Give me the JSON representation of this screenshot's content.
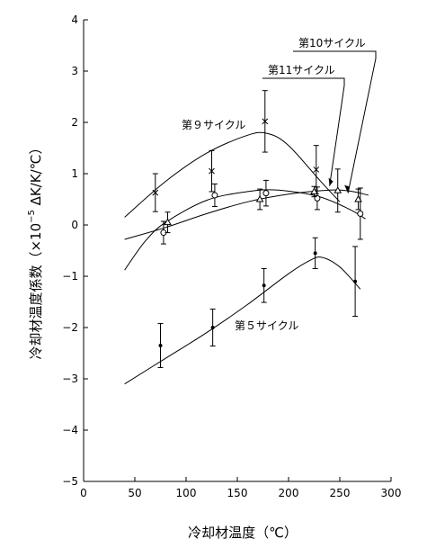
{
  "chart_data": {
    "type": "scatter",
    "xlabel": "冷却材温度（℃）",
    "ylabel": {
      "prefix": "冷却材温度係数（×10",
      "exponent": "−5",
      "suffix": " ΔK/K/℃）"
    },
    "xlim": [
      0,
      300
    ],
    "ylim": [
      -5,
      4
    ],
    "x_ticks": [
      0,
      50,
      100,
      150,
      200,
      250,
      300
    ],
    "y_ticks": [
      -5,
      -4,
      -3,
      -2,
      -1,
      0,
      1,
      2,
      3,
      4
    ],
    "grid": false,
    "series": [
      {
        "name": "第９サイクル",
        "marker": "x",
        "points": [
          {
            "x": 70,
            "y": 0.63,
            "err": 0.37
          },
          {
            "x": 125,
            "y": 1.05,
            "err": 0.4
          },
          {
            "x": 177,
            "y": 2.02,
            "err": 0.6
          },
          {
            "x": 227,
            "y": 1.08,
            "err": 0.47
          }
        ],
        "curve": [
          [
            40,
            0.15
          ],
          [
            80,
            0.85
          ],
          [
            120,
            1.4
          ],
          [
            160,
            1.75
          ],
          [
            180,
            1.78
          ],
          [
            200,
            1.55
          ],
          [
            230,
            0.88
          ],
          [
            250,
            0.45
          ]
        ]
      },
      {
        "name": "第11サイクル",
        "marker": "o",
        "points": [
          {
            "x": 78,
            "y": -0.15,
            "err": 0.22
          },
          {
            "x": 128,
            "y": 0.58,
            "err": 0.22
          },
          {
            "x": 178,
            "y": 0.62,
            "err": 0.25
          },
          {
            "x": 228,
            "y": 0.52,
            "err": 0.22
          },
          {
            "x": 270,
            "y": 0.22,
            "err": 0.5
          }
        ],
        "curve": [
          [
            40,
            -0.88
          ],
          [
            60,
            -0.32
          ],
          [
            80,
            0.05
          ],
          [
            120,
            0.48
          ],
          [
            160,
            0.65
          ],
          [
            190,
            0.68
          ],
          [
            230,
            0.55
          ],
          [
            260,
            0.3
          ],
          [
            275,
            0.12
          ]
        ]
      },
      {
        "name": "第10サイクル",
        "marker": "triangle",
        "points": [
          {
            "x": 82,
            "y": 0.05,
            "err": 0.2
          },
          {
            "x": 172,
            "y": 0.5,
            "err": 0.2
          },
          {
            "x": 225,
            "y": 0.65,
            "err": 0.1
          },
          {
            "x": 248,
            "y": 0.67,
            "err": 0.42
          },
          {
            "x": 268,
            "y": 0.5,
            "err": 0.2
          }
        ],
        "curve": [
          [
            40,
            -0.28
          ],
          [
            80,
            -0.05
          ],
          [
            120,
            0.22
          ],
          [
            160,
            0.45
          ],
          [
            200,
            0.6
          ],
          [
            240,
            0.68
          ],
          [
            260,
            0.66
          ],
          [
            278,
            0.58
          ]
        ]
      },
      {
        "name": "第５サイクル",
        "marker": "dot",
        "points": [
          {
            "x": 75,
            "y": -2.35,
            "err": 0.43
          },
          {
            "x": 126,
            "y": -2.0,
            "err": 0.36
          },
          {
            "x": 176,
            "y": -1.18,
            "err": 0.33
          },
          {
            "x": 226,
            "y": -0.55,
            "err": 0.3
          },
          {
            "x": 265,
            "y": -1.1,
            "err": 0.68
          }
        ],
        "curve": [
          [
            40,
            -3.1
          ],
          [
            80,
            -2.6
          ],
          [
            120,
            -2.1
          ],
          [
            160,
            -1.55
          ],
          [
            200,
            -0.95
          ],
          [
            220,
            -0.7
          ],
          [
            232,
            -0.63
          ],
          [
            250,
            -0.82
          ],
          [
            270,
            -1.25
          ]
        ]
      }
    ],
    "annotations": [
      {
        "text": "第10サイクル",
        "series": "第10サイクル"
      },
      {
        "text": "第11サイクル",
        "series": "第11サイクル"
      },
      {
        "text": "第９サイクル",
        "series": "第９サイクル"
      },
      {
        "text": "第５サイクル",
        "series": "第５サイクル"
      }
    ]
  }
}
